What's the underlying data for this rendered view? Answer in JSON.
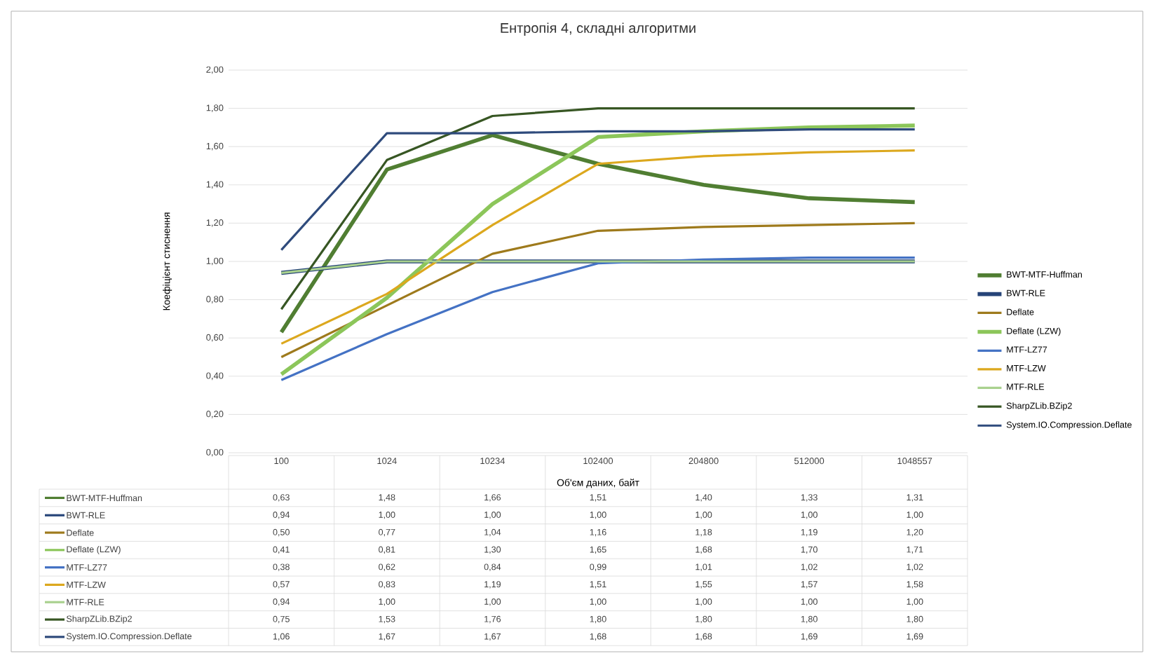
{
  "chart_data": {
    "type": "line",
    "title": "Ентропія 4, складні алгоритми",
    "xlabel": "Об'єм даних, байт",
    "ylabel": "Коефіцієнт стиснення",
    "categories": [
      "100",
      "1024",
      "10234",
      "102400",
      "204800",
      "512000",
      "1048557"
    ],
    "series": [
      {
        "name": "BWT-MTF-Huffman",
        "color": "#507e32",
        "values": [
          0.63,
          1.48,
          1.66,
          1.51,
          1.4,
          1.33,
          1.31
        ],
        "value_labels": [
          "0,63",
          "1,48",
          "1,66",
          "1,51",
          "1,40",
          "1,33",
          "1,31"
        ]
      },
      {
        "name": "BWT-RLE",
        "color": "#264478",
        "values": [
          0.94,
          1.0,
          1.0,
          1.0,
          1.0,
          1.0,
          1.0
        ],
        "value_labels": [
          "0,94",
          "1,00",
          "1,00",
          "1,00",
          "1,00",
          "1,00",
          "1,00"
        ]
      },
      {
        "name": "Deflate",
        "color": "#9e7a1c",
        "values": [
          0.5,
          0.77,
          1.04,
          1.16,
          1.18,
          1.19,
          1.2
        ],
        "value_labels": [
          "0,50",
          "0,77",
          "1,04",
          "1,16",
          "1,18",
          "1,19",
          "1,20"
        ]
      },
      {
        "name": "Deflate (LZW)",
        "color": "#8cc65a",
        "values": [
          0.41,
          0.81,
          1.3,
          1.65,
          1.68,
          1.7,
          1.71
        ],
        "value_labels": [
          "0,41",
          "0,81",
          "1,30",
          "1,65",
          "1,68",
          "1,70",
          "1,71"
        ]
      },
      {
        "name": "MTF-LZ77",
        "color": "#4472c4",
        "values": [
          0.38,
          0.62,
          0.84,
          0.99,
          1.01,
          1.02,
          1.02
        ],
        "value_labels": [
          "0,38",
          "0,62",
          "0,84",
          "0,99",
          "1,01",
          "1,02",
          "1,02"
        ]
      },
      {
        "name": "MTF-LZW",
        "color": "#dca81e",
        "values": [
          0.57,
          0.83,
          1.19,
          1.51,
          1.55,
          1.57,
          1.58
        ],
        "value_labels": [
          "0,57",
          "0,83",
          "1,19",
          "1,51",
          "1,55",
          "1,57",
          "1,58"
        ]
      },
      {
        "name": "MTF-RLE",
        "color": "#a9d18e",
        "values": [
          0.94,
          1.0,
          1.0,
          1.0,
          1.0,
          1.0,
          1.0
        ],
        "value_labels": [
          "0,94",
          "1,00",
          "1,00",
          "1,00",
          "1,00",
          "1,00",
          "1,00"
        ]
      },
      {
        "name": "SharpZLib.BZip2",
        "color": "#375623",
        "values": [
          0.75,
          1.53,
          1.76,
          1.8,
          1.8,
          1.8,
          1.8
        ],
        "value_labels": [
          "0,75",
          "1,53",
          "1,76",
          "1,80",
          "1,80",
          "1,80",
          "1,80"
        ]
      },
      {
        "name": "System.IO.Compression.Deflate",
        "color": "#2f4b7c",
        "values": [
          1.06,
          1.67,
          1.67,
          1.68,
          1.68,
          1.69,
          1.69
        ],
        "value_labels": [
          "1,06",
          "1,67",
          "1,67",
          "1,68",
          "1,68",
          "1,69",
          "1,69"
        ]
      }
    ],
    "ylim": [
      0,
      2
    ],
    "yticks": [
      {
        "value": 0,
        "label": "0,00"
      },
      {
        "value": 0.2,
        "label": "0,20"
      },
      {
        "value": 0.4,
        "label": "0,40"
      },
      {
        "value": 0.6,
        "label": "0,60"
      },
      {
        "value": 0.8,
        "label": "0,80"
      },
      {
        "value": 1.0,
        "label": "1,00"
      },
      {
        "value": 1.2,
        "label": "1,20"
      },
      {
        "value": 1.4,
        "label": "1,40"
      },
      {
        "value": 1.6,
        "label": "1,60"
      },
      {
        "value": 1.8,
        "label": "1,80"
      },
      {
        "value": 2.0,
        "label": "2,00"
      }
    ],
    "grid": "y",
    "legend": "right",
    "marker": "none",
    "line_style": "solid"
  }
}
